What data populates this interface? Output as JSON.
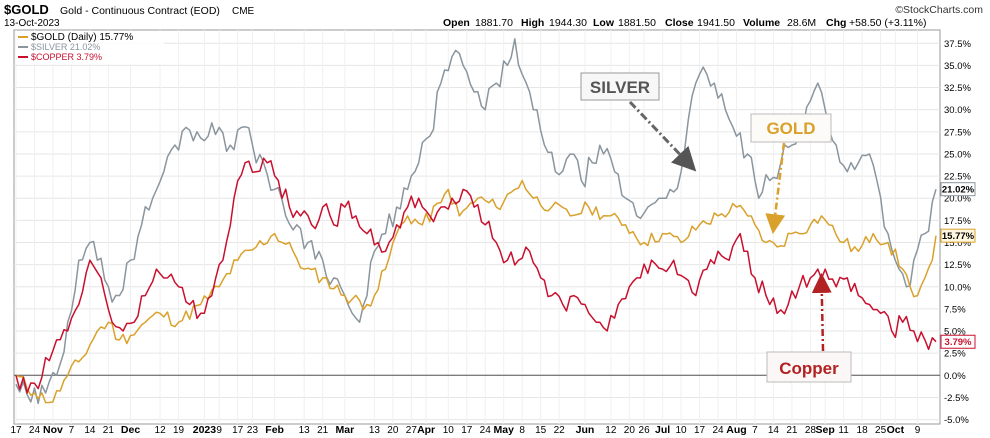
{
  "header": {
    "symbol": "$GOLD",
    "description": "Gold - Continuous Contract (EOD)",
    "exchange": "CME",
    "date": "13-Oct-2023",
    "stats": {
      "open_label": "Open",
      "open": "1881.70",
      "high_label": "High",
      "high": "1944.30",
      "low_label": "Low",
      "low": "1881.50",
      "close_label": "Close",
      "close": "1941.50",
      "volume_label": "Volume",
      "volume": "28.6M",
      "chg_label": "Chg",
      "chg": "+58.50 (+3.11%)"
    },
    "watermark": "©StockCharts.com"
  },
  "colors": {
    "gold": "#D9A12B",
    "silver": "#8A959E",
    "copper": "#C8102E",
    "zero_line": "#555555",
    "grid": "#e6e6e6"
  },
  "chart_data": {
    "type": "line",
    "title": "",
    "xlabel": "",
    "ylabel": "",
    "ylim": [
      -5.5,
      39
    ],
    "y_ticks": [
      -5.0,
      -2.5,
      0.0,
      2.5,
      5.0,
      7.5,
      10.0,
      12.5,
      15.0,
      17.5,
      20.0,
      22.5,
      25.0,
      27.5,
      30.0,
      32.5,
      35.0,
      37.5
    ],
    "y_tick_labels": [
      "-5.0%",
      "-2.5%",
      "0.0%",
      "2.5%",
      "5.0%",
      "7.5%",
      "10.0%",
      "12.5%",
      "15.0%",
      "17.5%",
      "20.0%",
      "22.5%",
      "25.0%",
      "27.5%",
      "30.0%",
      "32.5%",
      "35.0%",
      "37.5%"
    ],
    "x_ticks": [
      {
        "label": "17",
        "i": 0
      },
      {
        "label": "24",
        "i": 5
      },
      {
        "label": "Nov",
        "i": 10
      },
      {
        "label": "7",
        "i": 15
      },
      {
        "label": "14",
        "i": 20
      },
      {
        "label": "21",
        "i": 25
      },
      {
        "label": "Dec",
        "i": 31
      },
      {
        "label": "12",
        "i": 39
      },
      {
        "label": "19",
        "i": 44
      },
      {
        "label": "2023",
        "i": 51
      },
      {
        "label": "9",
        "i": 55
      },
      {
        "label": "17",
        "i": 60
      },
      {
        "label": "23",
        "i": 64
      },
      {
        "label": "Feb",
        "i": 70
      },
      {
        "label": "13",
        "i": 78
      },
      {
        "label": "21",
        "i": 83
      },
      {
        "label": "Mar",
        "i": 89
      },
      {
        "label": "13",
        "i": 97
      },
      {
        "label": "20",
        "i": 102
      },
      {
        "label": "27",
        "i": 107
      },
      {
        "label": "Apr",
        "i": 111
      },
      {
        "label": "10",
        "i": 117
      },
      {
        "label": "17",
        "i": 122
      },
      {
        "label": "24",
        "i": 127
      },
      {
        "label": "May",
        "i": 132
      },
      {
        "label": "8",
        "i": 137
      },
      {
        "label": "15",
        "i": 142
      },
      {
        "label": "22",
        "i": 147
      },
      {
        "label": "Jun",
        "i": 154
      },
      {
        "label": "12",
        "i": 161
      },
      {
        "label": "20",
        "i": 166
      },
      {
        "label": "26",
        "i": 170
      },
      {
        "label": "Jul",
        "i": 175
      },
      {
        "label": "10",
        "i": 180
      },
      {
        "label": "17",
        "i": 185
      },
      {
        "label": "24",
        "i": 190
      },
      {
        "label": "Aug",
        "i": 195
      },
      {
        "label": "7",
        "i": 200
      },
      {
        "label": "14",
        "i": 205
      },
      {
        "label": "21",
        "i": 210
      },
      {
        "label": "28",
        "i": 215
      },
      {
        "label": "Sep",
        "i": 219
      },
      {
        "label": "11",
        "i": 224
      },
      {
        "label": "18",
        "i": 229
      },
      {
        "label": "25",
        "i": 234
      },
      {
        "label": "Oct",
        "i": 238
      },
      {
        "label": "9",
        "i": 244
      }
    ],
    "series": [
      {
        "name": "$GOLD (Daily)",
        "legend_value": "15.77%",
        "legend_label": "$GOLD (Daily) 15.77%",
        "end_label": "15.77%",
        "keypoints": [
          [
            0,
            0
          ],
          [
            5,
            -2
          ],
          [
            10,
            -3
          ],
          [
            14,
            0
          ],
          [
            18,
            2
          ],
          [
            22,
            5
          ],
          [
            25,
            6
          ],
          [
            28,
            4
          ],
          [
            31,
            4.5
          ],
          [
            35,
            6
          ],
          [
            39,
            7
          ],
          [
            44,
            6
          ],
          [
            50,
            8
          ],
          [
            55,
            10
          ],
          [
            60,
            13
          ],
          [
            65,
            14.5
          ],
          [
            70,
            16
          ],
          [
            75,
            14
          ],
          [
            78,
            12
          ],
          [
            83,
            11
          ],
          [
            89,
            9
          ],
          [
            95,
            8
          ],
          [
            97,
            9
          ],
          [
            100,
            12
          ],
          [
            103,
            16
          ],
          [
            106,
            18
          ],
          [
            110,
            17
          ],
          [
            115,
            19.5
          ],
          [
            117,
            21
          ],
          [
            120,
            18
          ],
          [
            125,
            20
          ],
          [
            130,
            19
          ],
          [
            135,
            21
          ],
          [
            137,
            22
          ],
          [
            140,
            20
          ],
          [
            145,
            19
          ],
          [
            150,
            18
          ],
          [
            155,
            19
          ],
          [
            160,
            18
          ],
          [
            165,
            17
          ],
          [
            170,
            15
          ],
          [
            175,
            16
          ],
          [
            180,
            15
          ],
          [
            185,
            17
          ],
          [
            190,
            18
          ],
          [
            195,
            19
          ],
          [
            198,
            18
          ],
          [
            200,
            17
          ],
          [
            203,
            15
          ],
          [
            206,
            14.5
          ],
          [
            210,
            16
          ],
          [
            215,
            17
          ],
          [
            218,
            18
          ],
          [
            220,
            17
          ],
          [
            224,
            15
          ],
          [
            228,
            14
          ],
          [
            232,
            16
          ],
          [
            236,
            15
          ],
          [
            240,
            12
          ],
          [
            242,
            10
          ],
          [
            244,
            9
          ],
          [
            246,
            11
          ],
          [
            248,
            13
          ],
          [
            249,
            15.77
          ]
        ]
      },
      {
        "name": "$SILVER",
        "legend_value": "21.02%",
        "legend_label": "$SILVER 21.02%",
        "end_label": "21.02%",
        "keypoints": [
          [
            0,
            -1
          ],
          [
            4,
            -3
          ],
          [
            8,
            -2
          ],
          [
            11,
            0
          ],
          [
            14,
            6
          ],
          [
            17,
            13
          ],
          [
            20,
            15
          ],
          [
            22,
            13
          ],
          [
            25,
            10
          ],
          [
            28,
            9
          ],
          [
            31,
            13
          ],
          [
            34,
            17
          ],
          [
            37,
            20
          ],
          [
            40,
            23
          ],
          [
            43,
            26
          ],
          [
            46,
            28
          ],
          [
            49,
            27.5
          ],
          [
            52,
            27
          ],
          [
            55,
            28
          ],
          [
            58,
            26
          ],
          [
            61,
            28
          ],
          [
            64,
            26
          ],
          [
            67,
            24
          ],
          [
            70,
            21
          ],
          [
            73,
            18
          ],
          [
            76,
            17
          ],
          [
            79,
            15
          ],
          [
            83,
            13
          ],
          [
            86,
            11
          ],
          [
            89,
            9
          ],
          [
            91,
            7
          ],
          [
            93,
            6
          ],
          [
            95,
            9
          ],
          [
            97,
            14
          ],
          [
            100,
            16
          ],
          [
            103,
            19
          ],
          [
            106,
            21
          ],
          [
            109,
            24
          ],
          [
            112,
            27
          ],
          [
            115,
            33
          ],
          [
            118,
            36
          ],
          [
            121,
            35
          ],
          [
            124,
            32
          ],
          [
            127,
            30
          ],
          [
            130,
            33
          ],
          [
            133,
            35
          ],
          [
            135,
            38
          ],
          [
            137,
            34
          ],
          [
            140,
            30
          ],
          [
            143,
            26
          ],
          [
            146,
            23
          ],
          [
            150,
            25
          ],
          [
            153,
            22
          ],
          [
            156,
            24
          ],
          [
            159,
            25
          ],
          [
            162,
            23
          ],
          [
            165,
            20
          ],
          [
            168,
            18
          ],
          [
            171,
            19
          ],
          [
            174,
            20
          ],
          [
            177,
            21
          ],
          [
            180,
            23
          ],
          [
            184,
            33
          ],
          [
            187,
            34
          ],
          [
            189,
            33
          ],
          [
            192,
            30
          ],
          [
            195,
            27
          ],
          [
            198,
            25
          ],
          [
            201,
            20
          ],
          [
            204,
            22
          ],
          [
            207,
            24
          ],
          [
            210,
            26
          ],
          [
            213,
            28
          ],
          [
            215,
            31
          ],
          [
            217,
            33
          ],
          [
            219,
            30
          ],
          [
            222,
            26
          ],
          [
            225,
            23
          ],
          [
            228,
            24
          ],
          [
            231,
            25
          ],
          [
            233,
            22
          ],
          [
            236,
            16
          ],
          [
            239,
            12
          ],
          [
            241,
            10
          ],
          [
            243,
            13
          ],
          [
            246,
            16
          ],
          [
            249,
            21.02
          ]
        ]
      },
      {
        "name": "$COPPER",
        "legend_value": "3.79%",
        "legend_label": "$COPPER 3.79%",
        "end_label": "3.79%",
        "keypoints": [
          [
            0,
            0
          ],
          [
            3,
            -2
          ],
          [
            6,
            -1.5
          ],
          [
            8,
            2
          ],
          [
            11,
            4
          ],
          [
            14,
            5
          ],
          [
            17,
            8
          ],
          [
            20,
            13
          ],
          [
            23,
            11
          ],
          [
            26,
            6
          ],
          [
            29,
            5
          ],
          [
            32,
            6
          ],
          [
            35,
            9
          ],
          [
            38,
            12
          ],
          [
            41,
            11
          ],
          [
            44,
            10
          ],
          [
            47,
            8
          ],
          [
            50,
            7
          ],
          [
            53,
            9
          ],
          [
            56,
            13
          ],
          [
            59,
            20
          ],
          [
            62,
            24
          ],
          [
            65,
            23
          ],
          [
            68,
            24
          ],
          [
            71,
            22
          ],
          [
            74,
            19
          ],
          [
            77,
            18
          ],
          [
            80,
            17
          ],
          [
            83,
            19
          ],
          [
            86,
            17
          ],
          [
            89,
            19
          ],
          [
            92,
            18
          ],
          [
            95,
            16
          ],
          [
            98,
            15
          ],
          [
            100,
            14
          ],
          [
            103,
            17
          ],
          [
            106,
            19
          ],
          [
            109,
            20
          ],
          [
            112,
            18
          ],
          [
            115,
            19
          ],
          [
            118,
            20
          ],
          [
            121,
            21
          ],
          [
            124,
            19
          ],
          [
            127,
            17
          ],
          [
            130,
            15
          ],
          [
            133,
            13
          ],
          [
            136,
            13
          ],
          [
            139,
            14
          ],
          [
            142,
            11
          ],
          [
            145,
            9
          ],
          [
            148,
            8
          ],
          [
            151,
            9
          ],
          [
            154,
            8
          ],
          [
            157,
            6
          ],
          [
            160,
            5
          ],
          [
            163,
            8
          ],
          [
            166,
            10
          ],
          [
            169,
            11
          ],
          [
            172,
            13
          ],
          [
            175,
            12
          ],
          [
            178,
            13
          ],
          [
            181,
            11
          ],
          [
            184,
            9
          ],
          [
            187,
            12
          ],
          [
            190,
            14
          ],
          [
            193,
            13
          ],
          [
            196,
            16
          ],
          [
            198,
            14
          ],
          [
            200,
            11
          ],
          [
            203,
            9
          ],
          [
            206,
            7
          ],
          [
            209,
            8
          ],
          [
            212,
            10
          ],
          [
            215,
            11
          ],
          [
            217,
            12
          ],
          [
            219,
            12
          ],
          [
            222,
            10
          ],
          [
            225,
            11
          ],
          [
            228,
            9
          ],
          [
            231,
            8
          ],
          [
            234,
            7
          ],
          [
            237,
            5
          ],
          [
            240,
            6
          ],
          [
            243,
            5
          ],
          [
            246,
            4
          ],
          [
            249,
            3.79
          ]
        ]
      }
    ],
    "annotations": [
      {
        "label": "SILVER",
        "color": "#555555",
        "arrow_color": "#666666",
        "target_i": 183,
        "target_v": 23.5
      },
      {
        "label": "GOLD",
        "color": "#D9A12B",
        "arrow_color": "#D9A12B",
        "target_i": 205,
        "target_v": 16.5
      },
      {
        "label": "Copper",
        "color": "#B22222",
        "arrow_color": "#B22222",
        "target_i": 218,
        "target_v": 11
      }
    ]
  }
}
